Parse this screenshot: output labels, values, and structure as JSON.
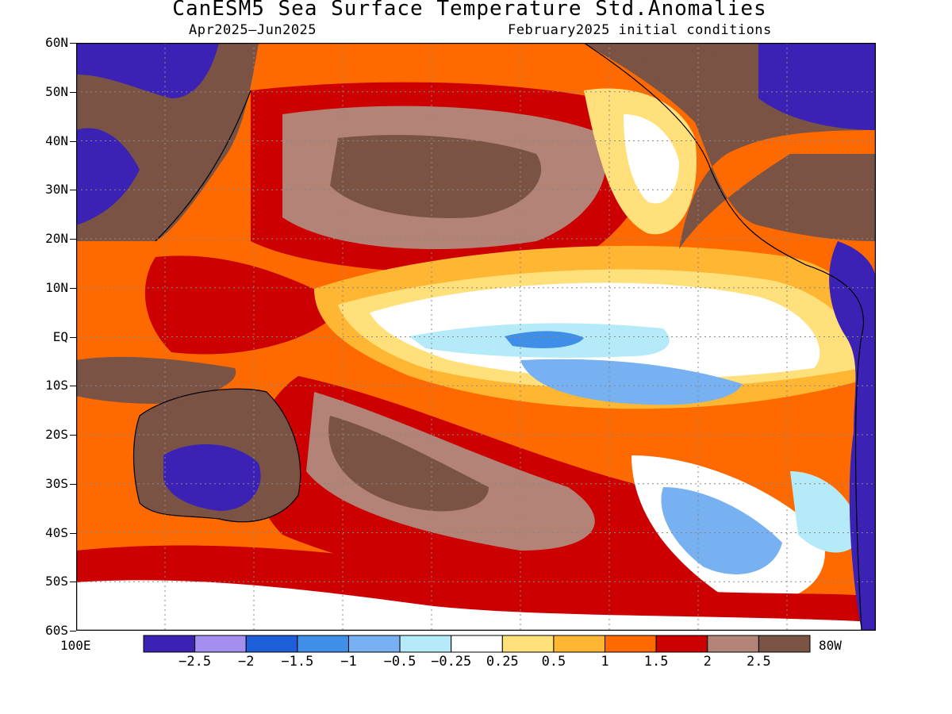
{
  "title": "CanESM5 Sea Surface Temperature Std.Anomalies",
  "subtitle_left": "Apr2025–Jun2025",
  "subtitle_right": "February2025 initial conditions",
  "lat_labels": [
    "60N",
    "50N",
    "40N",
    "30N",
    "20N",
    "10N",
    "EQ",
    "10S",
    "20S",
    "30S",
    "40S",
    "50S",
    "60S"
  ],
  "lon_labels": {
    "left": "100E",
    "right": "80W"
  },
  "colorbar": {
    "colors": [
      "#3b22b5",
      "#a48ff0",
      "#1e5fd9",
      "#3f8ee8",
      "#77b1f1",
      "#b5ebf8",
      "#ffffff",
      "#ffe07a",
      "#ffb733",
      "#ff6a00",
      "#cc0000",
      "#b38378",
      "#7a5345"
    ],
    "labels": [
      "−2.5",
      "−2",
      "−1.5",
      "−1",
      "−0.5",
      "−0.25",
      "0.25",
      "0.5",
      "1",
      "1.5",
      "2",
      "2.5"
    ]
  },
  "legend_icon": "color-scale",
  "land_color": "#7a5345",
  "coastline_color": "#000000"
}
